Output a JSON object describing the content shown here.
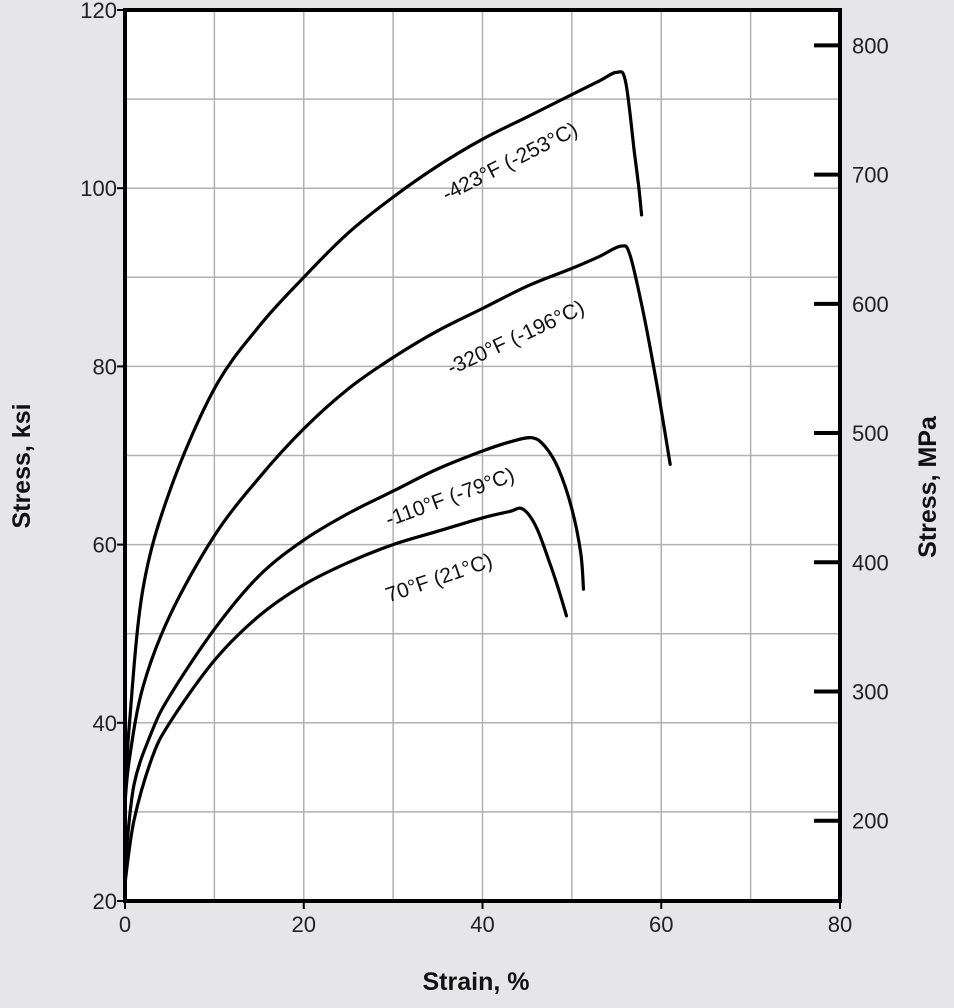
{
  "chart_data": {
    "type": "line",
    "xlabel": "Strain, %",
    "ylabel": "Stress, ksi",
    "y2label": "Stress, MPa",
    "xlim": [
      0,
      80
    ],
    "ylim": [
      20,
      120
    ],
    "x_ticks": [
      "0",
      "20",
      "40",
      "60",
      "80"
    ],
    "y_ticks": [
      "20",
      "40",
      "60",
      "80",
      "100",
      "120"
    ],
    "y2_ticks": [
      "200",
      "300",
      "400",
      "500",
      "600",
      "700",
      "800"
    ],
    "grid": true,
    "series": [
      {
        "name": "-423°F (-253°C)",
        "x": [
          0,
          0.5,
          2,
          5,
          10,
          15,
          20,
          25,
          30,
          35,
          40,
          45,
          50,
          53,
          55,
          56,
          57,
          57.5,
          57.8
        ],
        "y": [
          32,
          40,
          55,
          66,
          77.5,
          84.5,
          90,
          95,
          99,
          102.5,
          105.5,
          108,
          110.5,
          112,
          113,
          112,
          104,
          100,
          97
        ]
      },
      {
        "name": "-320°F (-196°C)",
        "x": [
          0,
          0.5,
          2,
          5,
          10,
          15,
          20,
          25,
          30,
          35,
          40,
          45,
          50,
          53,
          55.5,
          56.5,
          58,
          59.5,
          61
        ],
        "y": [
          31,
          36,
          44,
          52,
          61,
          67.5,
          73,
          77.5,
          81,
          84,
          86.5,
          89,
          91,
          92.3,
          93.5,
          92.5,
          86,
          78,
          69
        ]
      },
      {
        "name": "-110°F (-79°C)",
        "x": [
          0,
          1,
          3,
          5,
          10,
          15,
          20,
          25,
          30,
          35,
          40,
          43,
          45.5,
          47,
          48.5,
          50,
          51,
          51.3
        ],
        "y": [
          24,
          33,
          39,
          43,
          50.5,
          56.5,
          60.5,
          63.5,
          66,
          68.5,
          70.5,
          71.5,
          72,
          71,
          68.5,
          64,
          59,
          55
        ]
      },
      {
        "name": "70°F (21°C)",
        "x": [
          0,
          1,
          3,
          5,
          10,
          15,
          20,
          25,
          30,
          35,
          40,
          43,
          44.5,
          46,
          47.5,
          48.5,
          49.4
        ],
        "y": [
          22,
          29,
          36,
          40,
          47,
          52,
          55.5,
          58,
          60,
          61.5,
          63,
          63.7,
          64,
          62,
          58,
          55,
          52
        ]
      }
    ]
  }
}
